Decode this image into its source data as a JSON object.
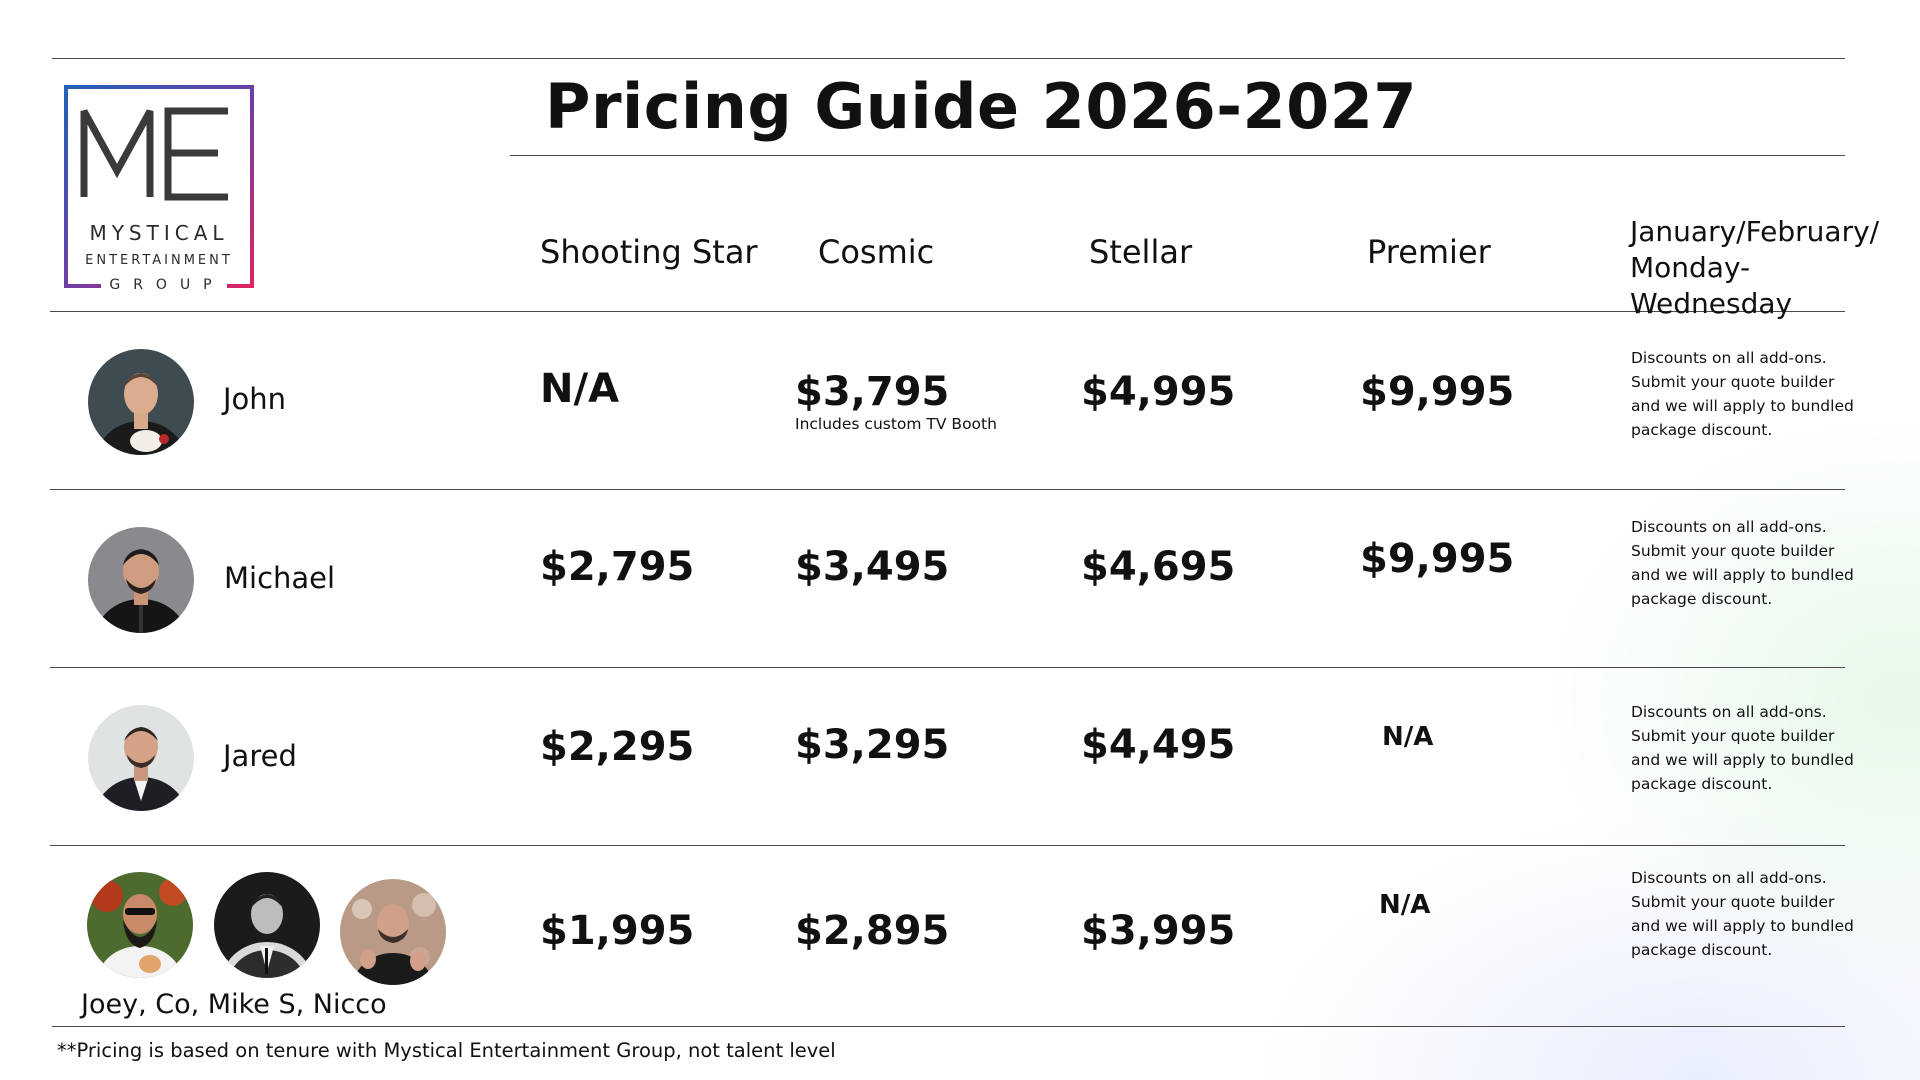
{
  "title": "Pricing Guide 2026-2027",
  "logo": {
    "monogram": "ME",
    "line1": "MYSTICAL",
    "line2": "ENTERTAINMENT",
    "line3": "GROUP"
  },
  "columns": [
    "Shooting Star",
    "Cosmic",
    "Stellar",
    "Premier",
    "January/February/ Monday-Wednesday"
  ],
  "rows": [
    {
      "talent": "John",
      "prices": [
        "N/A",
        "$3,795",
        "$4,995",
        "$9,995"
      ],
      "cosmic_note": "Includes custom TV Booth",
      "discount": "Discounts on all add-ons. Submit your quote builder and we will apply to bundled package discount."
    },
    {
      "talent": "Michael",
      "prices": [
        "$2,795",
        "$3,495",
        "$4,695",
        "$9,995"
      ],
      "discount": "Discounts on all add-ons. Submit your quote builder and we will apply to bundled package discount."
    },
    {
      "talent": "Jared",
      "prices": [
        "$2,295",
        "$3,295",
        "$4,495",
        "N/A"
      ],
      "discount": "Discounts on all add-ons. Submit your quote builder and we will apply to bundled package discount."
    },
    {
      "talent": "Joey, Co, Mike S, Nicco",
      "prices": [
        "$1,995",
        "$2,895",
        "$3,995",
        "N/A"
      ],
      "discount": "Discounts on all add-ons. Submit your quote builder and we will apply to bundled package discount."
    }
  ],
  "footnote": "**Pricing is based on tenure with Mystical Entertainment Group, not talent level"
}
